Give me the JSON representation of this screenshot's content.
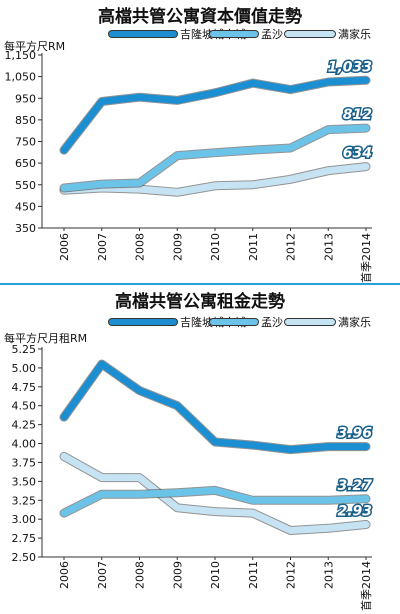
{
  "chart_data": [
    {
      "type": "line",
      "title": "高檔共管公寓資本價值走勢",
      "ylabel": "每平方尺RM",
      "categories": [
        "2006",
        "2007",
        "2008",
        "2009",
        "2010",
        "2011",
        "2012",
        "2013",
        "首季2014"
      ],
      "ylim": [
        350,
        1150
      ],
      "yticks": [
        "1,150",
        "1,050",
        "950",
        "850",
        "750",
        "650",
        "550",
        "450",
        "350"
      ],
      "ytick_values": [
        1150,
        1050,
        950,
        850,
        750,
        650,
        550,
        450,
        350
      ],
      "legend_position": "top",
      "grid": false,
      "series": [
        {
          "name": "吉隆坡城中城",
          "color": "#1b8fd2",
          "values": [
            710,
            935,
            955,
            940,
            975,
            1020,
            990,
            1025,
            1033
          ],
          "end_label": "1,033"
        },
        {
          "name": "孟沙",
          "color": "#6cc3e8",
          "values": [
            535,
            553,
            558,
            685,
            698,
            710,
            720,
            805,
            812
          ],
          "end_label": "812"
        },
        {
          "name": "满家乐",
          "color": "#c6e3f3",
          "values": [
            525,
            535,
            530,
            515,
            545,
            550,
            575,
            615,
            634
          ],
          "end_label": "634"
        }
      ]
    },
    {
      "type": "line",
      "title": "高檔共管公寓租金走勢",
      "ylabel": "每平方尺月租RM",
      "categories": [
        "2006",
        "2007",
        "2008",
        "2009",
        "2010",
        "2011",
        "2012",
        "2013",
        "首季2014"
      ],
      "ylim": [
        2.5,
        5.25
      ],
      "yticks": [
        "5.25",
        "5.00",
        "4.75",
        "4.50",
        "4.25",
        "4.00",
        "3.75",
        "3.50",
        "3.25",
        "3.00",
        "2.75",
        "2.50"
      ],
      "ytick_values": [
        5.25,
        5.0,
        4.75,
        4.5,
        4.25,
        4.0,
        3.75,
        3.5,
        3.25,
        3.0,
        2.75,
        2.5
      ],
      "legend_position": "top",
      "grid": false,
      "series": [
        {
          "name": "吉隆坡城中城",
          "color": "#1b8fd2",
          "values": [
            4.35,
            5.05,
            4.7,
            4.5,
            4.02,
            3.98,
            3.92,
            3.96,
            3.96
          ],
          "end_label": "3.96"
        },
        {
          "name": "孟沙",
          "color": "#6cc3e8",
          "values": [
            3.08,
            3.33,
            3.33,
            3.35,
            3.38,
            3.25,
            3.25,
            3.25,
            3.27
          ],
          "end_label": "3.27"
        },
        {
          "name": "满家乐",
          "color": "#c6e3f3",
          "values": [
            3.83,
            3.55,
            3.55,
            3.15,
            3.1,
            3.08,
            2.85,
            2.88,
            2.93
          ],
          "end_label": "2.93"
        }
      ]
    }
  ]
}
